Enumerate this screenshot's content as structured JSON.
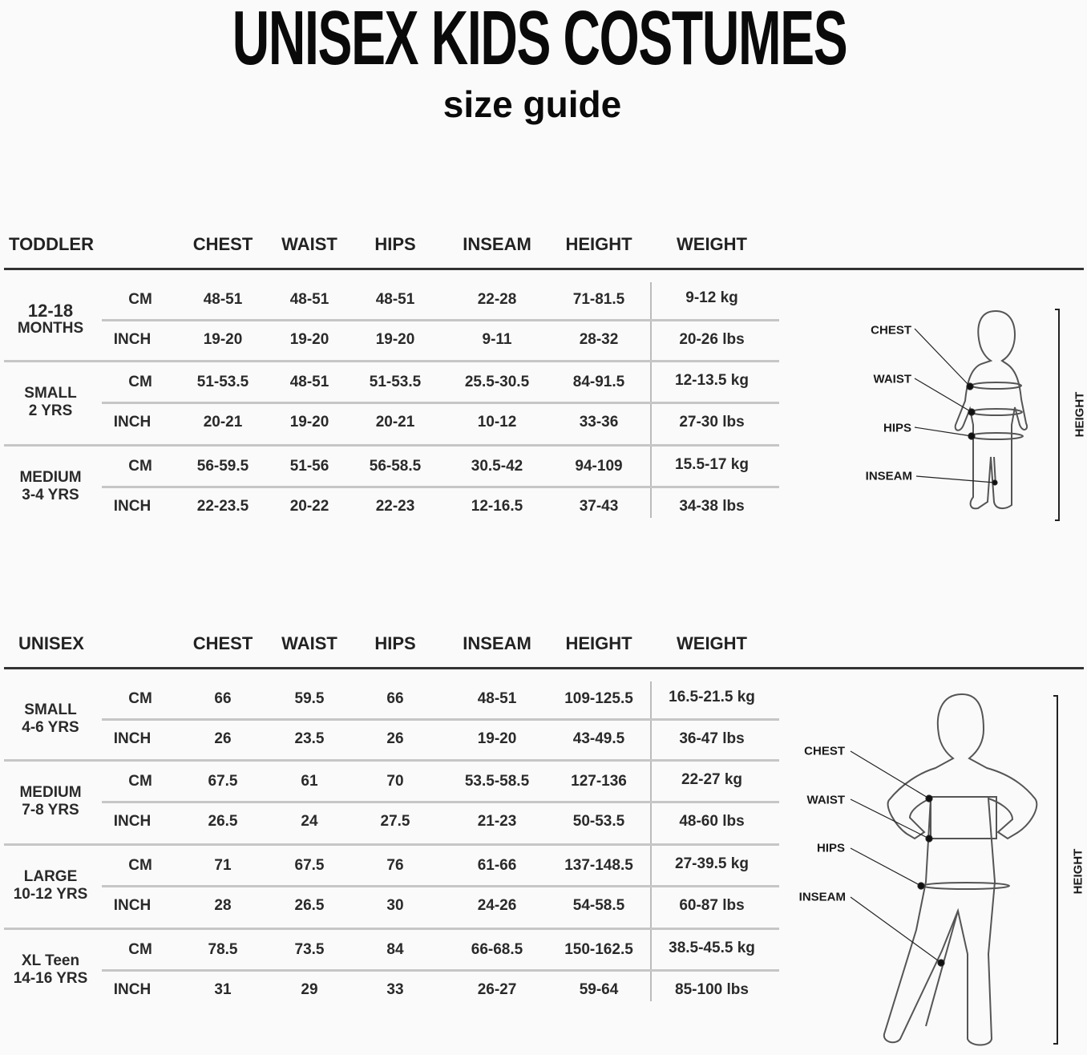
{
  "header": {
    "title": "UNISEX KIDS COSTUMES",
    "subtitle": "size guide"
  },
  "columns": [
    "CHEST",
    "WAIST",
    "HIPS",
    "INSEAM",
    "HEIGHT",
    "WEIGHT"
  ],
  "units": {
    "cm": "CM",
    "inch": "INCH"
  },
  "tables": [
    {
      "name": "TODDLER",
      "groups": [
        {
          "label": [
            "12-18",
            "MONTHS"
          ],
          "cm": [
            "48-51",
            "48-51",
            "48-51",
            "22-28",
            "71-81.5",
            "9-12 kg"
          ],
          "inch": [
            "19-20",
            "19-20",
            "19-20",
            "9-11",
            "28-32",
            "20-26 lbs"
          ]
        },
        {
          "label": [
            "SMALL",
            "2 YRS"
          ],
          "cm": [
            "51-53.5",
            "48-51",
            "51-53.5",
            "25.5-30.5",
            "84-91.5",
            "12-13.5 kg"
          ],
          "inch": [
            "20-21",
            "19-20",
            "20-21",
            "10-12",
            "33-36",
            "27-30 lbs"
          ]
        },
        {
          "label": [
            "MEDIUM",
            "3-4 YRS"
          ],
          "cm": [
            "56-59.5",
            "51-56",
            "56-58.5",
            "30.5-42",
            "94-109",
            "15.5-17 kg"
          ],
          "inch": [
            "22-23.5",
            "20-22",
            "22-23",
            "12-16.5",
            "37-43",
            "34-38 lbs"
          ]
        }
      ]
    },
    {
      "name": "UNISEX",
      "groups": [
        {
          "label": [
            "SMALL",
            "4-6 YRS"
          ],
          "cm": [
            "66",
            "59.5",
            "66",
            "48-51",
            "109-125.5",
            "16.5-21.5 kg"
          ],
          "inch": [
            "26",
            "23.5",
            "26",
            "19-20",
            "43-49.5",
            "36-47 lbs"
          ]
        },
        {
          "label": [
            "MEDIUM",
            "7-8 YRS"
          ],
          "cm": [
            "67.5",
            "61",
            "70",
            "53.5-58.5",
            "127-136",
            "22-27 kg"
          ],
          "inch": [
            "26.5",
            "24",
            "27.5",
            "21-23",
            "50-53.5",
            "48-60 lbs"
          ]
        },
        {
          "label": [
            "LARGE",
            "10-12 YRS"
          ],
          "cm": [
            "71",
            "67.5",
            "76",
            "61-66",
            "137-148.5",
            "27-39.5 kg"
          ],
          "inch": [
            "28",
            "26.5",
            "30",
            "24-26",
            "54-58.5",
            "60-87 lbs"
          ]
        },
        {
          "label": [
            "XL Teen",
            "14-16 YRS"
          ],
          "cm": [
            "78.5",
            "73.5",
            "84",
            "66-68.5",
            "150-162.5",
            "38.5-45.5 kg"
          ],
          "inch": [
            "31",
            "29",
            "33",
            "26-27",
            "59-64",
            "85-100 lbs"
          ]
        }
      ]
    }
  ],
  "figure": {
    "labels": [
      "CHEST",
      "WAIST",
      "HIPS",
      "INSEAM"
    ],
    "height_label": "HEIGHT",
    "icon": "child-body-outline"
  }
}
